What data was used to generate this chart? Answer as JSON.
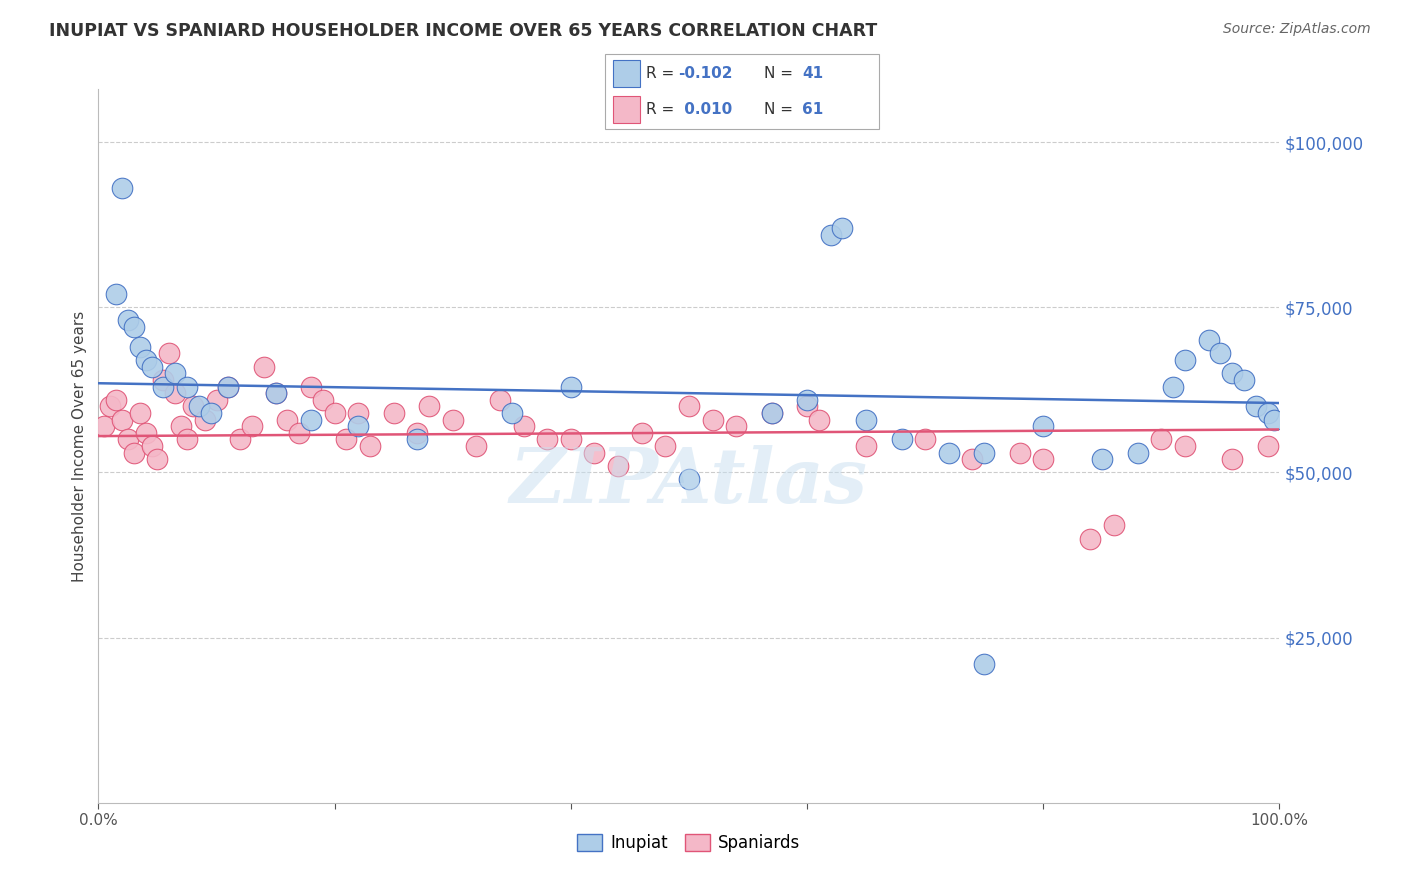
{
  "title": "INUPIAT VS SPANIARD HOUSEHOLDER INCOME OVER 65 YEARS CORRELATION CHART",
  "source": "Source: ZipAtlas.com",
  "ylabel": "Householder Income Over 65 years",
  "ylabel_right_labels": [
    "$25,000",
    "$50,000",
    "$75,000",
    "$100,000"
  ],
  "ylabel_right_values": [
    25000,
    50000,
    75000,
    100000
  ],
  "legend_label1": "Inupiat",
  "legend_label2": "Spaniards",
  "legend_r1": "-0.102",
  "legend_n1": "41",
  "legend_r2": "0.010",
  "legend_n2": "61",
  "inupiat_color": "#aecde8",
  "spaniard_color": "#f4b8c8",
  "trend_color_inupiat": "#4472c4",
  "trend_color_spaniard": "#e05577",
  "watermark": "ZIPAtlas",
  "inupiat_x": [
    2.0,
    1.5,
    2.5,
    3.0,
    3.5,
    4.0,
    4.5,
    5.5,
    6.5,
    7.5,
    8.5,
    9.5,
    11.0,
    15.0,
    18.0,
    22.0,
    27.0,
    35.0,
    40.0,
    50.0,
    57.0,
    60.0,
    65.0,
    68.0,
    72.0,
    75.0,
    80.0,
    85.0,
    88.0,
    91.0,
    92.0,
    94.0,
    95.0,
    96.0,
    97.0,
    98.0,
    99.0,
    99.5,
    62.0,
    63.0,
    75.0
  ],
  "inupiat_y": [
    93000,
    77000,
    73000,
    72000,
    69000,
    67000,
    66000,
    63000,
    65000,
    63000,
    60000,
    59000,
    63000,
    62000,
    58000,
    57000,
    55000,
    59000,
    63000,
    49000,
    59000,
    61000,
    58000,
    55000,
    53000,
    53000,
    57000,
    52000,
    53000,
    63000,
    67000,
    70000,
    68000,
    65000,
    64000,
    60000,
    59000,
    58000,
    86000,
    87000,
    21000
  ],
  "spaniard_x": [
    0.5,
    1.0,
    1.5,
    2.0,
    2.5,
    3.0,
    3.5,
    4.0,
    4.5,
    5.0,
    5.5,
    6.0,
    6.5,
    7.0,
    7.5,
    8.0,
    9.0,
    10.0,
    11.0,
    12.0,
    13.0,
    14.0,
    15.0,
    16.0,
    17.0,
    18.0,
    19.0,
    20.0,
    21.0,
    22.0,
    23.0,
    25.0,
    27.0,
    28.0,
    30.0,
    32.0,
    34.0,
    36.0,
    38.0,
    40.0,
    42.0,
    44.0,
    46.0,
    48.0,
    50.0,
    52.0,
    54.0,
    57.0,
    60.0,
    61.0,
    65.0,
    70.0,
    74.0,
    78.0,
    80.0,
    84.0,
    86.0,
    90.0,
    92.0,
    96.0,
    99.0
  ],
  "spaniard_y": [
    57000,
    60000,
    61000,
    58000,
    55000,
    53000,
    59000,
    56000,
    54000,
    52000,
    64000,
    68000,
    62000,
    57000,
    55000,
    60000,
    58000,
    61000,
    63000,
    55000,
    57000,
    66000,
    62000,
    58000,
    56000,
    63000,
    61000,
    59000,
    55000,
    59000,
    54000,
    59000,
    56000,
    60000,
    58000,
    54000,
    61000,
    57000,
    55000,
    55000,
    53000,
    51000,
    56000,
    54000,
    60000,
    58000,
    57000,
    59000,
    60000,
    58000,
    54000,
    55000,
    52000,
    53000,
    52000,
    40000,
    42000,
    55000,
    54000,
    52000,
    54000
  ]
}
